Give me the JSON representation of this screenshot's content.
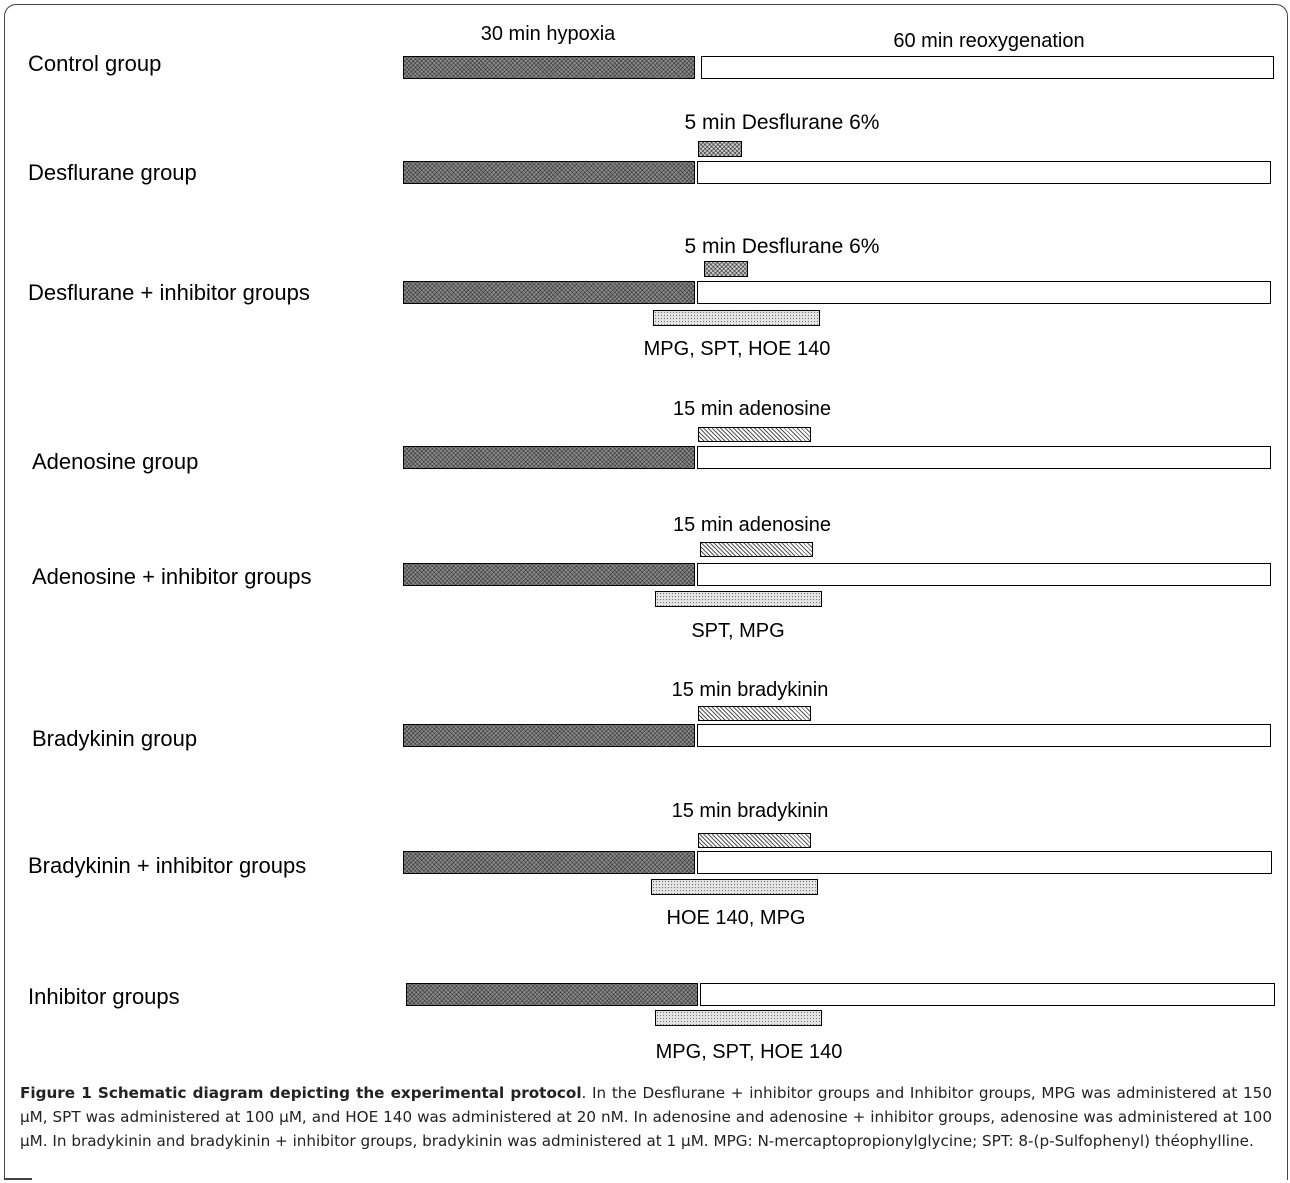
{
  "diagram": {
    "header_labels": {
      "hypoxia": "30 min hypoxia",
      "reoxygenation": "60 min reoxygenation"
    },
    "groups": [
      {
        "label": "Control group"
      },
      {
        "label": "Desflurane group",
        "agent_label": "5 min Desflurane 6%"
      },
      {
        "label": "Desflurane + inhibitor groups",
        "agent_label": "5 min Desflurane 6%",
        "inhibitor_label": "MPG, SPT, HOE 140"
      },
      {
        "label": "Adenosine group",
        "agent_label": "15 min adenosine"
      },
      {
        "label": "Adenosine + inhibitor groups",
        "agent_label": "15 min adenosine",
        "inhibitor_label": "SPT, MPG"
      },
      {
        "label": "Bradykinin group",
        "agent_label": "15 min bradykinin"
      },
      {
        "label": "Bradykinin + inhibitor groups",
        "agent_label": "15 min bradykinin",
        "inhibitor_label": "HOE 140, MPG"
      },
      {
        "label": "Inhibitor groups",
        "inhibitor_label": "MPG, SPT, HOE 140"
      }
    ]
  },
  "caption": {
    "title": "Figure 1 Schematic diagram depicting the experimental protocol",
    "text": ". In the Desflurane + inhibitor groups and Inhibitor groups, MPG was administered at 150 µM, SPT was administered at 100 µM, and HOE 140 was administered at 20 nM. In adenosine and adenosine + inhibitor groups, adenosine was administered at 100 µM. In bradykinin and bradykinin + inhibitor groups, bradykinin was administered at 1 µM. MPG: N-mercaptopropionylglycine; SPT: 8-(p-Sulfophenyl) théophylline."
  }
}
